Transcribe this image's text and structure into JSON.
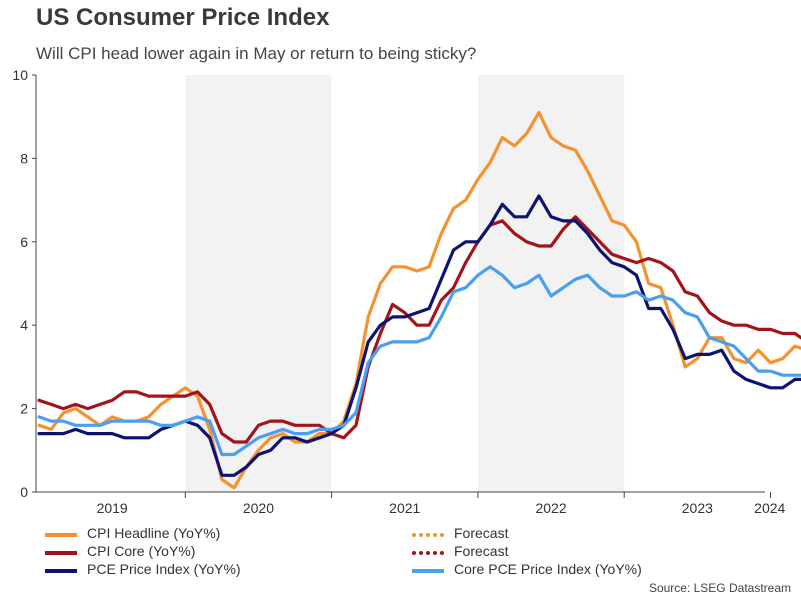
{
  "title": "US Consumer Price Index",
  "subtitle": "Will CPI head lower again in May or return to being sticky?",
  "source": "Source: LSEG Datastream",
  "legend": {
    "cpi_headline": "CPI Headline (YoY%)",
    "cpi_headline_forecast": "Forecast",
    "cpi_core": "CPI Core (YoY%)",
    "cpi_core_forecast": "Forecast",
    "pce": "PCE Price Index (YoY%)",
    "core_pce": "Core PCE Price Index (YoY%)"
  },
  "colors": {
    "cpi_headline": "#f5922f",
    "cpi_core": "#a3141a",
    "pce": "#0d1470",
    "core_pce": "#4a9ff0",
    "band": "#f2f2f2",
    "axis": "#444444"
  },
  "chart_data": {
    "type": "line",
    "x_start": "2019-01",
    "x_end": "2024-05",
    "xlabels": [
      "2019",
      "2020",
      "2021",
      "2022",
      "2023",
      "2024"
    ],
    "ylim": [
      0,
      10
    ],
    "yticks": [
      0,
      2,
      4,
      6,
      8,
      10
    ],
    "shaded_years": [
      "2020",
      "2022"
    ],
    "series": [
      {
        "key": "cpi_headline",
        "name": "CPI Headline (YoY%)",
        "values": [
          1.6,
          1.5,
          1.9,
          2.0,
          1.8,
          1.6,
          1.8,
          1.7,
          1.7,
          1.8,
          2.1,
          2.3,
          2.5,
          2.3,
          1.5,
          0.3,
          0.1,
          0.6,
          1.0,
          1.3,
          1.4,
          1.2,
          1.2,
          1.4,
          1.4,
          1.7,
          2.6,
          4.2,
          5.0,
          5.4,
          5.4,
          5.3,
          5.4,
          6.2,
          6.8,
          7.0,
          7.5,
          7.9,
          8.5,
          8.3,
          8.6,
          9.1,
          8.5,
          8.3,
          8.2,
          7.7,
          7.1,
          6.5,
          6.4,
          6.0,
          5.0,
          4.9,
          4.0,
          3.0,
          3.2,
          3.7,
          3.7,
          3.2,
          3.1,
          3.4,
          3.1,
          3.2,
          3.5,
          3.4,
          3.4
        ],
        "forecast": [
          3.4,
          3.4
        ]
      },
      {
        "key": "cpi_core",
        "name": "CPI Core (YoY%)",
        "values": [
          2.2,
          2.1,
          2.0,
          2.1,
          2.0,
          2.1,
          2.2,
          2.4,
          2.4,
          2.3,
          2.3,
          2.3,
          2.3,
          2.4,
          2.1,
          1.4,
          1.2,
          1.2,
          1.6,
          1.7,
          1.7,
          1.6,
          1.6,
          1.6,
          1.4,
          1.3,
          1.6,
          3.0,
          3.8,
          4.5,
          4.3,
          4.0,
          4.0,
          4.6,
          4.9,
          5.5,
          6.0,
          6.4,
          6.5,
          6.2,
          6.0,
          5.9,
          5.9,
          6.3,
          6.6,
          6.3,
          6.0,
          5.7,
          5.6,
          5.5,
          5.6,
          5.5,
          5.3,
          4.8,
          4.7,
          4.3,
          4.1,
          4.0,
          4.0,
          3.9,
          3.9,
          3.8,
          3.8,
          3.6
        ],
        "forecast": [
          3.6,
          3.5
        ]
      },
      {
        "key": "pce",
        "name": "PCE Price Index (YoY%)",
        "values": [
          1.4,
          1.4,
          1.4,
          1.5,
          1.4,
          1.4,
          1.4,
          1.3,
          1.3,
          1.3,
          1.5,
          1.6,
          1.7,
          1.6,
          1.3,
          0.4,
          0.4,
          0.6,
          0.9,
          1.0,
          1.3,
          1.3,
          1.2,
          1.3,
          1.4,
          1.6,
          2.5,
          3.6,
          4.0,
          4.2,
          4.2,
          4.3,
          4.4,
          5.1,
          5.8,
          6.0,
          6.0,
          6.4,
          6.9,
          6.6,
          6.6,
          7.1,
          6.6,
          6.5,
          6.5,
          6.2,
          5.8,
          5.5,
          5.4,
          5.2,
          4.4,
          4.4,
          3.9,
          3.2,
          3.3,
          3.3,
          3.4,
          2.9,
          2.7,
          2.6,
          2.5,
          2.5,
          2.7,
          2.7
        ],
        "forecast": []
      },
      {
        "key": "core_pce",
        "name": "Core PCE Price Index (YoY%)",
        "values": [
          1.8,
          1.7,
          1.7,
          1.6,
          1.6,
          1.6,
          1.7,
          1.7,
          1.7,
          1.7,
          1.6,
          1.6,
          1.7,
          1.8,
          1.7,
          0.9,
          0.9,
          1.1,
          1.3,
          1.4,
          1.5,
          1.4,
          1.4,
          1.5,
          1.5,
          1.6,
          1.9,
          3.1,
          3.5,
          3.6,
          3.6,
          3.6,
          3.7,
          4.2,
          4.8,
          4.9,
          5.2,
          5.4,
          5.2,
          4.9,
          5.0,
          5.2,
          4.7,
          4.9,
          5.1,
          5.2,
          4.9,
          4.7,
          4.7,
          4.8,
          4.6,
          4.7,
          4.6,
          4.3,
          4.2,
          3.7,
          3.6,
          3.5,
          3.2,
          2.9,
          2.9,
          2.8,
          2.8,
          2.8
        ],
        "forecast": []
      }
    ]
  }
}
